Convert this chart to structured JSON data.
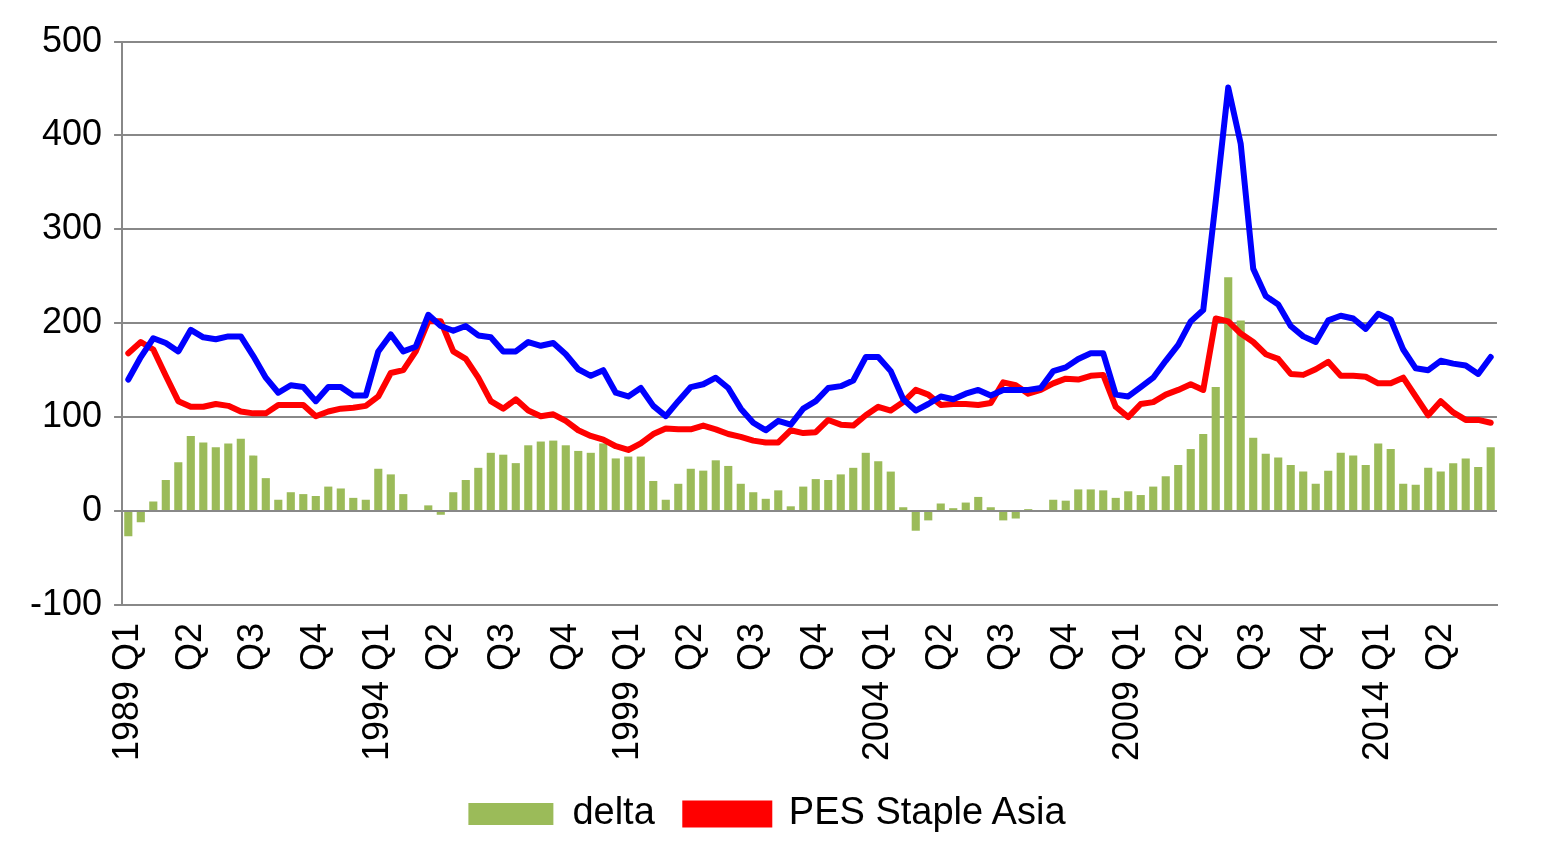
{
  "chart_data": {
    "type": "bar",
    "categories": [
      "1989 Q1",
      null,
      null,
      null,
      null,
      "Q2",
      null,
      null,
      null,
      null,
      "Q3",
      null,
      null,
      null,
      null,
      "Q4",
      null,
      null,
      null,
      null,
      "1994 Q1",
      null,
      null,
      null,
      null,
      "Q2",
      null,
      null,
      null,
      null,
      "Q3",
      null,
      null,
      null,
      null,
      "Q4",
      null,
      null,
      null,
      null,
      "1999 Q1",
      null,
      null,
      null,
      null,
      "Q2",
      null,
      null,
      null,
      null,
      "Q3",
      null,
      null,
      null,
      null,
      "Q4",
      null,
      null,
      null,
      null,
      "2004 Q1",
      null,
      null,
      null,
      null,
      "Q2",
      null,
      null,
      null,
      null,
      "Q3",
      null,
      null,
      null,
      null,
      "Q4",
      null,
      null,
      null,
      null,
      "2009 Q1",
      null,
      null,
      null,
      null,
      "Q2",
      null,
      null,
      null,
      null,
      "Q3",
      null,
      null,
      null,
      null,
      "Q4",
      null,
      null,
      null,
      null,
      "2014 Q1",
      null,
      null,
      null,
      null,
      "Q2",
      null,
      null,
      null,
      null
    ],
    "series": [
      {
        "name": "delta",
        "color": "#9bbb59",
        "values": [
          -27,
          -12,
          10,
          33,
          52,
          80,
          73,
          68,
          72,
          77,
          59,
          35,
          12,
          20,
          18,
          16,
          26,
          24,
          14,
          12,
          45,
          39,
          18,
          0,
          6,
          -4,
          20,
          33,
          46,
          62,
          60,
          51,
          70,
          74,
          75,
          70,
          64,
          62,
          72,
          56,
          58,
          58,
          32,
          12,
          29,
          45,
          43,
          54,
          48,
          29,
          20,
          13,
          22,
          5,
          26,
          34,
          33,
          39,
          46,
          62,
          53,
          42,
          4,
          -21,
          -10,
          8,
          3,
          9,
          15,
          4,
          -10,
          -8,
          2,
          0,
          12,
          11,
          23,
          23,
          22,
          14,
          21,
          17,
          26,
          37,
          49,
          66,
          82,
          132,
          249,
          203,
          78,
          61,
          57,
          49,
          42,
          29,
          43,
          62,
          59,
          49,
          72,
          66,
          29,
          28,
          46,
          42,
          51,
          56,
          47,
          68
        ]
      },
      {
        "type": "line",
        "color": "#0000ff",
        "values": [
          140,
          164,
          184,
          179,
          170,
          193,
          185,
          183,
          186,
          186,
          165,
          142,
          126,
          134,
          132,
          117,
          132,
          132,
          123,
          123,
          170,
          188,
          170,
          175,
          209,
          197,
          192,
          197,
          187,
          185,
          170,
          170,
          180,
          176,
          179,
          167,
          151,
          144,
          150,
          126,
          122,
          131,
          112,
          101,
          117,
          132,
          135,
          142,
          131,
          109,
          94,
          86,
          96,
          92,
          109,
          117,
          131,
          133,
          139,
          164,
          164,
          149,
          119,
          107,
          114,
          122,
          119,
          125,
          129,
          123,
          129,
          129,
          129,
          131,
          149,
          153,
          162,
          168,
          168,
          124,
          122,
          132,
          142,
          160,
          177,
          202,
          214,
          330,
          451,
          391,
          258,
          229,
          220,
          197,
          186,
          180,
          203,
          208,
          205,
          194,
          210,
          204,
          172,
          152,
          150,
          160,
          157,
          155,
          146,
          164
        ]
      },
      {
        "type": "line",
        "name": "PES Staple Asia",
        "color": "#ff0000",
        "values": [
          168,
          180,
          172,
          144,
          117,
          111,
          111,
          114,
          112,
          106,
          104,
          104,
          113,
          113,
          113,
          101,
          106,
          109,
          110,
          112,
          122,
          147,
          150,
          170,
          202,
          202,
          170,
          162,
          142,
          117,
          109,
          119,
          107,
          101,
          103,
          96,
          86,
          80,
          76,
          69,
          65,
          72,
          82,
          88,
          87,
          87,
          91,
          87,
          82,
          79,
          75,
          73,
          73,
          86,
          83,
          84,
          97,
          92,
          91,
          102,
          111,
          107,
          116,
          129,
          124,
          113,
          114,
          114,
          113,
          115,
          137,
          134,
          125,
          129,
          136,
          141,
          140,
          144,
          145,
          111,
          100,
          114,
          116,
          124,
          129,
          135,
          129,
          205,
          202,
          189,
          180,
          167,
          162,
          146,
          145,
          151,
          159,
          144,
          144,
          143,
          136,
          136,
          142,
          122,
          102,
          117,
          105,
          97,
          97,
          94
        ]
      }
    ],
    "ylim": [
      -100,
      500
    ],
    "yticks": [
      -100,
      0,
      100,
      200,
      300,
      400,
      500
    ],
    "grid": "y",
    "legend": "bottom",
    "marker": "none"
  }
}
